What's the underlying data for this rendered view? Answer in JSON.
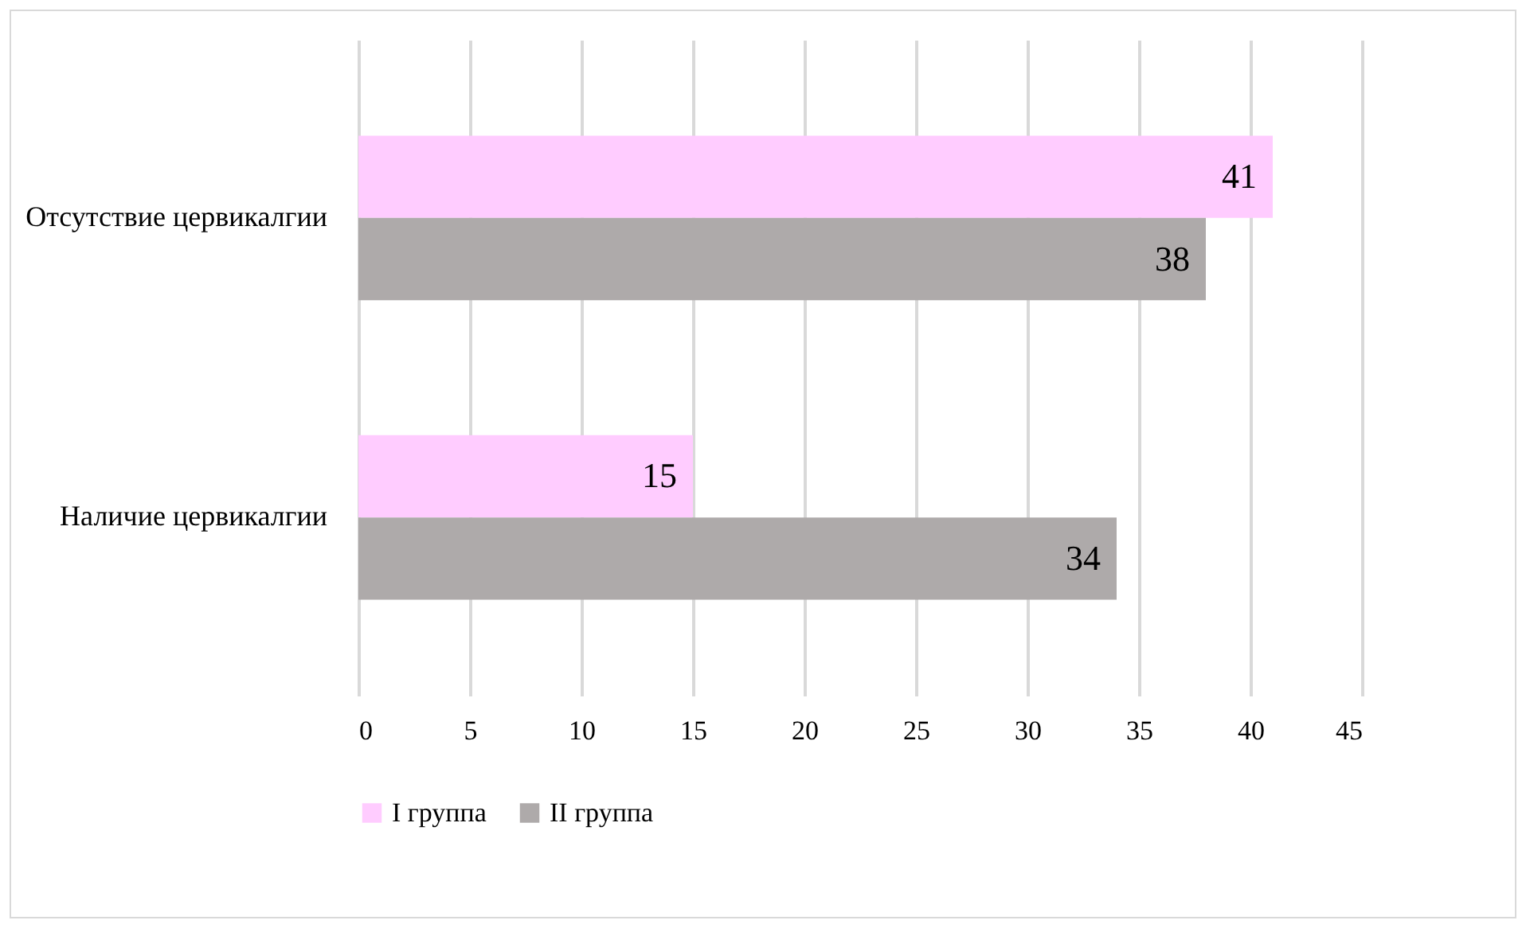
{
  "chart_data": {
    "type": "bar",
    "orientation": "horizontal",
    "categories": [
      "Отсутствие цервикалгии",
      "Наличие цервикалгии"
    ],
    "series": [
      {
        "name": "I группа",
        "color": "#ffccff",
        "values": [
          41,
          15
        ]
      },
      {
        "name": "II группа",
        "color": "#aeaaaa",
        "values": [
          38,
          34
        ]
      }
    ],
    "xlim": [
      0,
      45
    ],
    "xticks": [
      0,
      5,
      10,
      15,
      20,
      25,
      30,
      35,
      40,
      45
    ],
    "grid": "x",
    "legend": "bottom",
    "data_labels": true
  }
}
